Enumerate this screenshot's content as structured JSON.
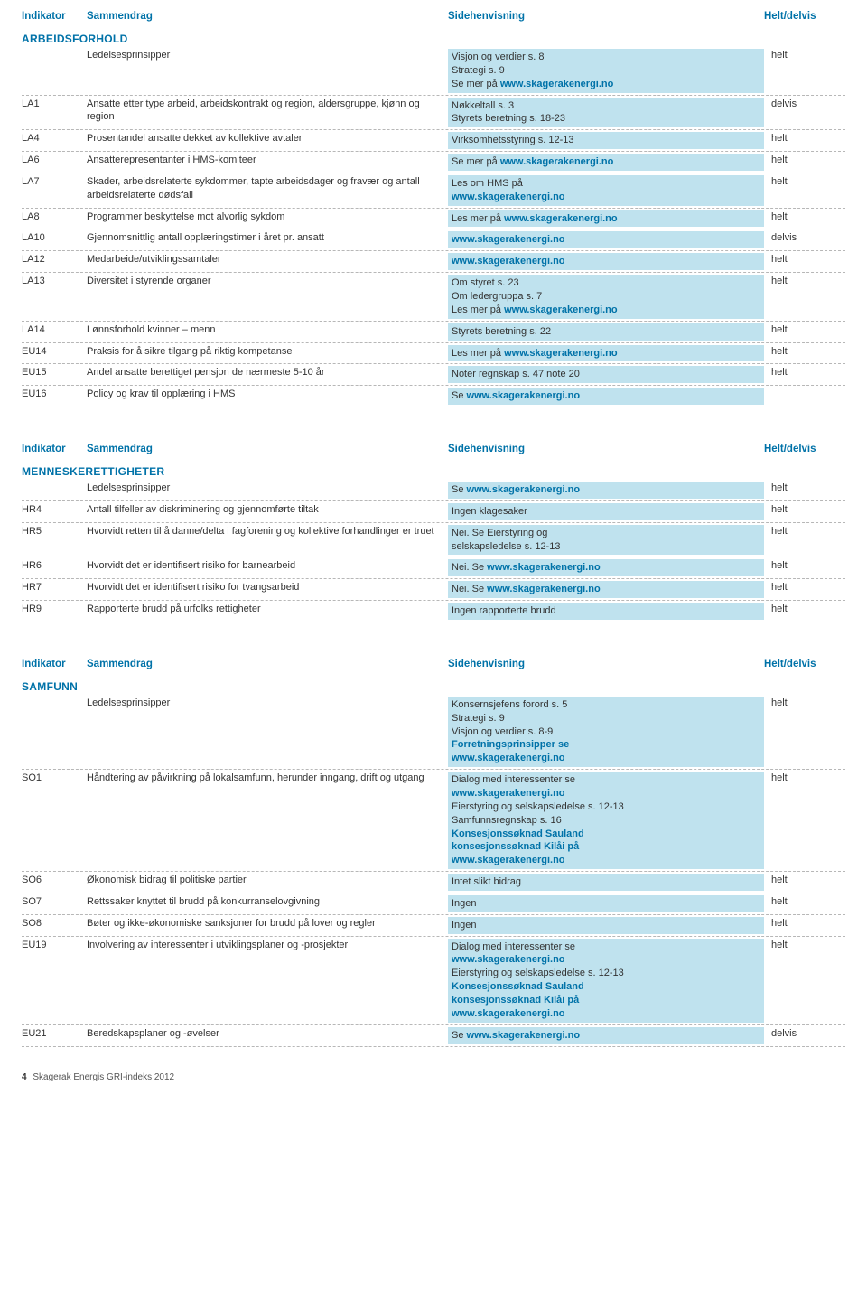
{
  "headers": {
    "ind": "Indikator",
    "sam": "Sammendrag",
    "side": "Sidehenvisning",
    "helt": "Helt/delvis"
  },
  "colors": {
    "headerText": "#0072a8",
    "cellBg": "#bfe2ee",
    "link": "#0072a8",
    "dash": "#b7b7b7",
    "body": "#333333"
  },
  "sections": [
    {
      "title": "ARBEIDSFORHOLD",
      "rows": [
        {
          "ind": "",
          "sam": "Ledelsesprinsipper",
          "side": [
            {
              "t": "Visjon og verdier s. 8",
              "s": "ref"
            },
            {
              "t": "Strategi s. 9",
              "s": "ref"
            },
            {
              "t": "Se mer på ",
              "s": "ref",
              "a": "www.skagerakenergi.no"
            }
          ],
          "helt": "helt"
        },
        {
          "ind": "LA1",
          "sam": "Ansatte etter type arbeid, arbeidskontrakt og region, aldersgruppe, kjønn og region",
          "side": [
            {
              "t": "Nøkkeltall s. 3",
              "s": "ref"
            },
            {
              "t": "Styrets beretning s. 18-23",
              "s": "ref"
            }
          ],
          "helt": "delvis"
        },
        {
          "ind": "LA4",
          "sam": "Prosentandel ansatte dekket av kollektive avtaler",
          "side": [
            {
              "t": "Virksomhetsstyring s. 12-13",
              "s": "ref"
            }
          ],
          "helt": "helt"
        },
        {
          "ind": "LA6",
          "sam": "Ansatterepresentanter i  HMS-komiteer",
          "side": [
            {
              "t": "Se mer på ",
              "s": "ref",
              "a": "www.skagerakenergi.no"
            }
          ],
          "helt": "helt"
        },
        {
          "ind": "LA7",
          "sam": "Skader, arbeidsrelaterte sykdommer, tapte arbeidsdager og fravær og antall arbeidsrelaterte dødsfall",
          "side": [
            {
              "t": "Les om HMS på",
              "s": "ref"
            },
            {
              "t": "",
              "s": "ref",
              "a": "www.skagerakenergi.no"
            }
          ],
          "helt": "helt"
        },
        {
          "ind": "LA8",
          "sam": "Programmer beskyttelse mot alvorlig sykdom",
          "side": [
            {
              "t": "Les mer på ",
              "s": "ref",
              "a": "www.skagerakenergi.no"
            }
          ],
          "helt": "helt"
        },
        {
          "ind": "LA10",
          "sam": "Gjennomsnittlig antall opplæringstimer i året pr. ansatt",
          "side": [
            {
              "t": " ",
              "s": "ref",
              "a": "www.skagerakenergi.no"
            }
          ],
          "helt": "delvis"
        },
        {
          "ind": "LA12",
          "sam": "Medarbeide/utviklingssamtaler",
          "side": [
            {
              "t": " ",
              "s": "ref",
              "a": "www.skagerakenergi.no"
            }
          ],
          "helt": "helt"
        },
        {
          "ind": "LA13",
          "sam": "Diversitet i styrende organer",
          "side": [
            {
              "t": "Om styret s. 23",
              "s": "ref"
            },
            {
              "t": "Om ledergruppa s. 7",
              "s": "ref"
            },
            {
              "t": "Les mer på ",
              "s": "ref",
              "a": "www.skagerakenergi.no"
            }
          ],
          "helt": "helt"
        },
        {
          "ind": "LA14",
          "sam": "Lønnsforhold kvinner – menn",
          "side": [
            {
              "t": "Styrets beretning s. 22",
              "s": "ref"
            }
          ],
          "helt": "helt"
        },
        {
          "ind": "EU14",
          "sam": "Praksis for å sikre tilgang på riktig kompetanse",
          "side": [
            {
              "t": "Les mer på ",
              "s": "ref",
              "a": "www.skagerakenergi.no"
            }
          ],
          "helt": "helt"
        },
        {
          "ind": "EU15",
          "sam": "Andel ansatte berettiget pensjon de nærmeste  5-10 år",
          "side": [
            {
              "t": "Noter regnskap s. 47 note 20",
              "s": "ref"
            }
          ],
          "helt": "helt"
        },
        {
          "ind": "EU16",
          "sam": "Policy og krav til opplæring i HMS",
          "side": [
            {
              "t": "Se ",
              "s": "ref",
              "a": "www.skagerakenergi.no"
            }
          ],
          "helt": ""
        }
      ]
    },
    {
      "title": "MENNESKERETTIGHETER",
      "rows": [
        {
          "ind": "",
          "sam": "Ledelsesprinsipper",
          "side": [
            {
              "t": "Se ",
              "s": "ref",
              "a": "www.skagerakenergi.no"
            }
          ],
          "helt": "helt"
        },
        {
          "ind": "HR4",
          "sam": "Antall tilfeller av diskriminering og gjennomførte tiltak",
          "side": [
            {
              "t": "Ingen klagesaker",
              "s": "ref"
            }
          ],
          "helt": "helt"
        },
        {
          "ind": "HR5",
          "sam": "Hvorvidt  retten til å danne/delta i fagforening og kollektive forhandlinger er truet",
          "side": [
            {
              "t": "Nei. Se Eierstyring og",
              "s": "ref"
            },
            {
              "t": "selskapsledelse s. 12-13",
              "s": "ref"
            }
          ],
          "helt": "helt"
        },
        {
          "ind": "HR6",
          "sam": "Hvorvidt det er identifisert risiko for barnearbeid",
          "side": [
            {
              "t": "Nei. Se ",
              "s": "ref",
              "a": "www.skagerakenergi.no"
            }
          ],
          "helt": "helt"
        },
        {
          "ind": "HR7",
          "sam": "Hvorvidt det er identifisert  risiko for tvangsarbeid",
          "side": [
            {
              "t": "Nei. Se ",
              "s": "ref",
              "a": "www.skagerakenergi.no"
            }
          ],
          "helt": "helt"
        },
        {
          "ind": "HR9",
          "sam": "Rapporterte brudd på urfolks rettigheter",
          "side": [
            {
              "t": "Ingen rapporterte brudd",
              "s": "ref"
            }
          ],
          "helt": "helt"
        }
      ]
    },
    {
      "title": "SAMFUNN",
      "rows": [
        {
          "ind": "",
          "sam": "Ledelsesprinsipper",
          "side": [
            {
              "t": "Konsernsjefens forord s. 5",
              "s": "ref"
            },
            {
              "t": "Strategi s. 9",
              "s": "ref"
            },
            {
              "t": "Visjon og verdier s. 8-9",
              "s": "ref"
            },
            {
              "t": "Forretningsprinsipper se",
              "s": "link"
            },
            {
              "t": "",
              "s": "ref",
              "a": "www.skagerakenergi.no"
            }
          ],
          "helt": "helt"
        },
        {
          "ind": "SO1",
          "sam": "Håndtering av påvirkning på lokalsamfunn, herunder inngang, drift og utgang",
          "side": [
            {
              "t": "Dialog med interessenter se",
              "s": "ref"
            },
            {
              "t": "",
              "s": "ref",
              "a": "www.skagerakenergi.no"
            },
            {
              "t": "Eierstyring og selskapsledelse s. 12-13",
              "s": "ref"
            },
            {
              "t": "Samfunnsregnskap s. 16",
              "s": "ref"
            },
            {
              "t": "Konsesjonssøknad Sauland",
              "s": "link"
            },
            {
              "t": "konsesjonssøknad Kilåi på",
              "s": "link"
            },
            {
              "t": "",
              "s": "ref",
              "a": "www.skagerakenergi.no"
            }
          ],
          "helt": "helt"
        },
        {
          "ind": "SO6",
          "sam": "Økonomisk bidrag til politiske partier",
          "side": [
            {
              "t": "Intet slikt bidrag",
              "s": "ref"
            }
          ],
          "helt": "helt"
        },
        {
          "ind": "SO7",
          "sam": "Rettssaker knyttet til brudd på konkurranselovgivning",
          "side": [
            {
              "t": "Ingen",
              "s": "ref"
            }
          ],
          "helt": "helt"
        },
        {
          "ind": "SO8",
          "sam": "Bøter og ikke-økonomiske sanksjoner for brudd på lover og regler",
          "side": [
            {
              "t": "Ingen",
              "s": "ref"
            }
          ],
          "helt": "helt"
        },
        {
          "ind": "EU19",
          "sam": "Involvering av interessenter i utviklingsplaner og -prosjekter",
          "side": [
            {
              "t": "Dialog med interessenter se",
              "s": "ref"
            },
            {
              "t": "",
              "s": "ref",
              "a": "www.skagerakenergi.no"
            },
            {
              "t": "Eierstyring og selskapsledelse s. 12-13",
              "s": "ref"
            },
            {
              "t": "Konsesjonssøknad Sauland",
              "s": "link"
            },
            {
              "t": "konsesjonssøknad Kilåi på",
              "s": "link"
            },
            {
              "t": "",
              "s": "ref",
              "a": "www.skagerakenergi.no"
            }
          ],
          "helt": "helt"
        },
        {
          "ind": "EU21",
          "sam": "Beredskapsplaner og -øvelser",
          "side": [
            {
              "t": "Se ",
              "s": "ref",
              "a": "www.skagerakenergi.no"
            }
          ],
          "helt": "delvis"
        }
      ]
    }
  ],
  "footer": {
    "num": "4",
    "text": "Skagerak Energis GRI-indeks 2012"
  }
}
